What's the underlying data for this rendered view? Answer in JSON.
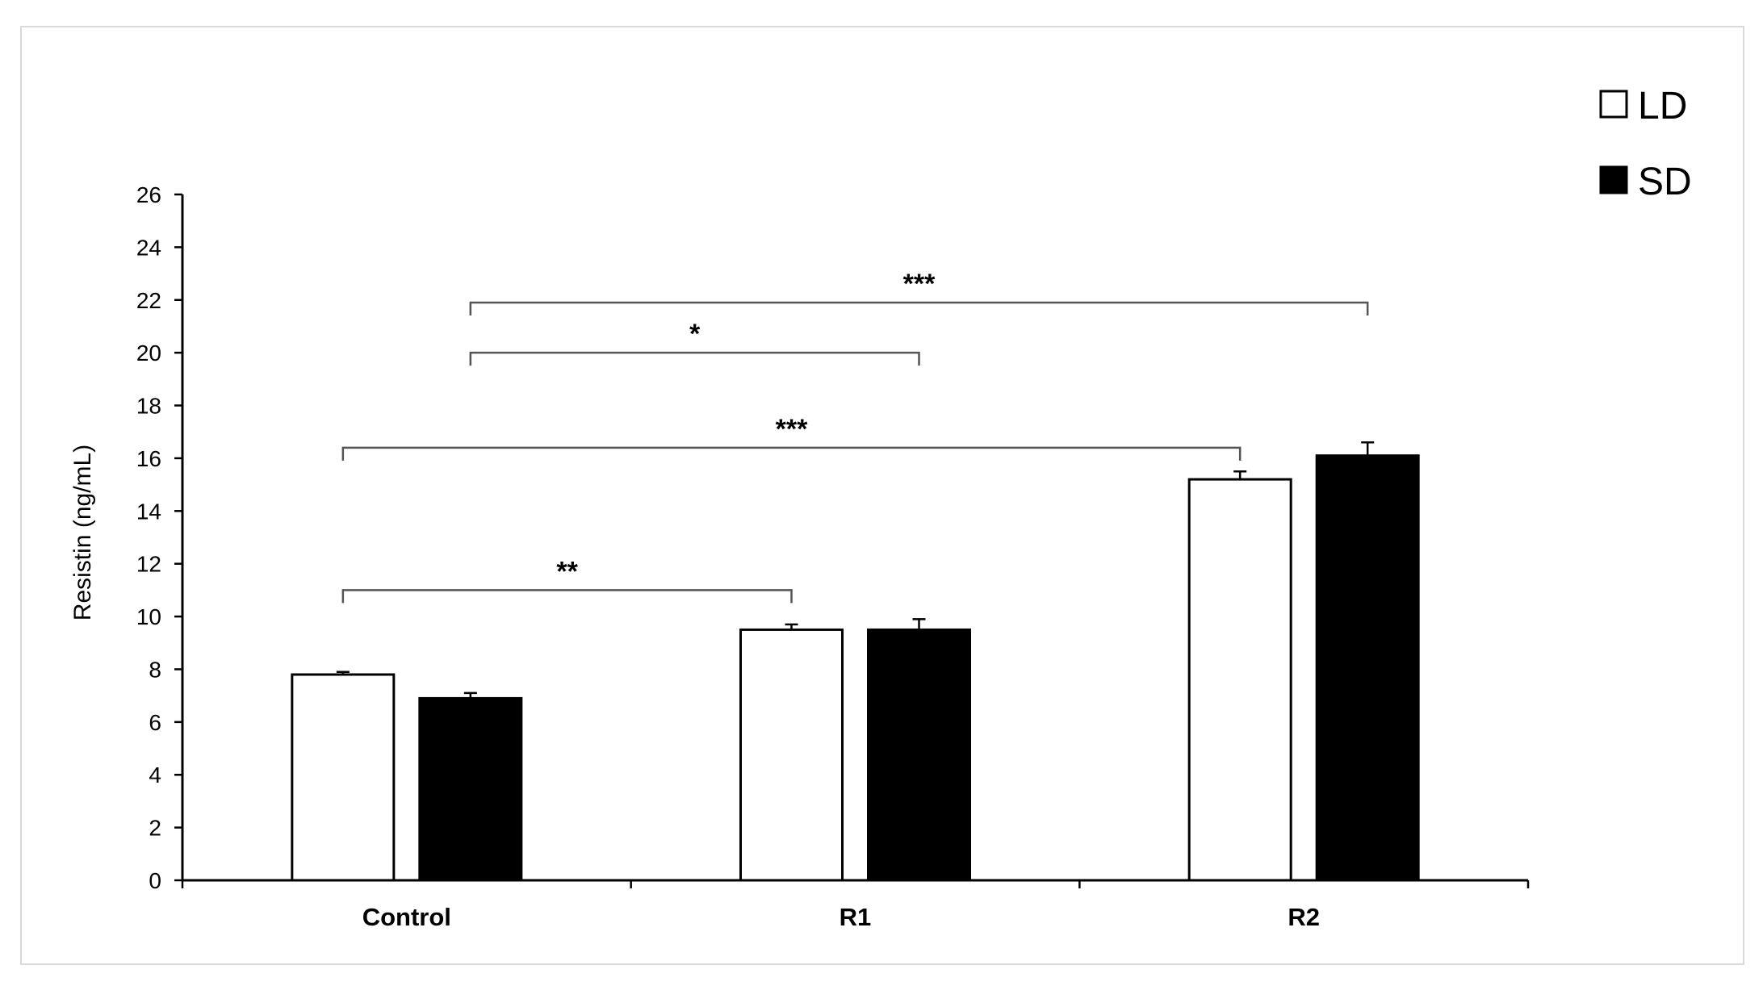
{
  "chart_data": {
    "type": "bar",
    "title": "",
    "xlabel": "",
    "ylabel": "Resistin (ng/mL)",
    "ylim": [
      0,
      26
    ],
    "yticks": [
      0,
      2,
      4,
      6,
      8,
      10,
      12,
      14,
      16,
      18,
      20,
      22,
      24,
      26
    ],
    "grid": false,
    "legend_position": "top-right",
    "categories": [
      "Control",
      "R1",
      "R2"
    ],
    "series": [
      {
        "name": "LD",
        "color": "#ffffff",
        "edge_color": "#000000",
        "values": [
          7.8,
          9.5,
          15.2
        ],
        "errors": [
          0.1,
          0.2,
          0.3
        ]
      },
      {
        "name": "SD",
        "color": "#000000",
        "edge_color": "#000000",
        "values": [
          6.9,
          9.5,
          16.1
        ],
        "errors": [
          0.2,
          0.4,
          0.5
        ]
      }
    ],
    "significance": [
      {
        "label": "**",
        "from": {
          "category": "Control",
          "series": "LD"
        },
        "to": {
          "category": "R1",
          "series": "LD"
        },
        "y": 11.0
      },
      {
        "label": "***",
        "from": {
          "category": "Control",
          "series": "LD"
        },
        "to": {
          "category": "R2",
          "series": "LD"
        },
        "y": 16.4
      },
      {
        "label": "*",
        "from": {
          "category": "Control",
          "series": "SD"
        },
        "to": {
          "category": "R1",
          "series": "SD"
        },
        "y": 20.0
      },
      {
        "label": "***",
        "from": {
          "category": "Control",
          "series": "SD"
        },
        "to": {
          "category": "R2",
          "series": "SD"
        },
        "y": 21.9
      }
    ]
  }
}
